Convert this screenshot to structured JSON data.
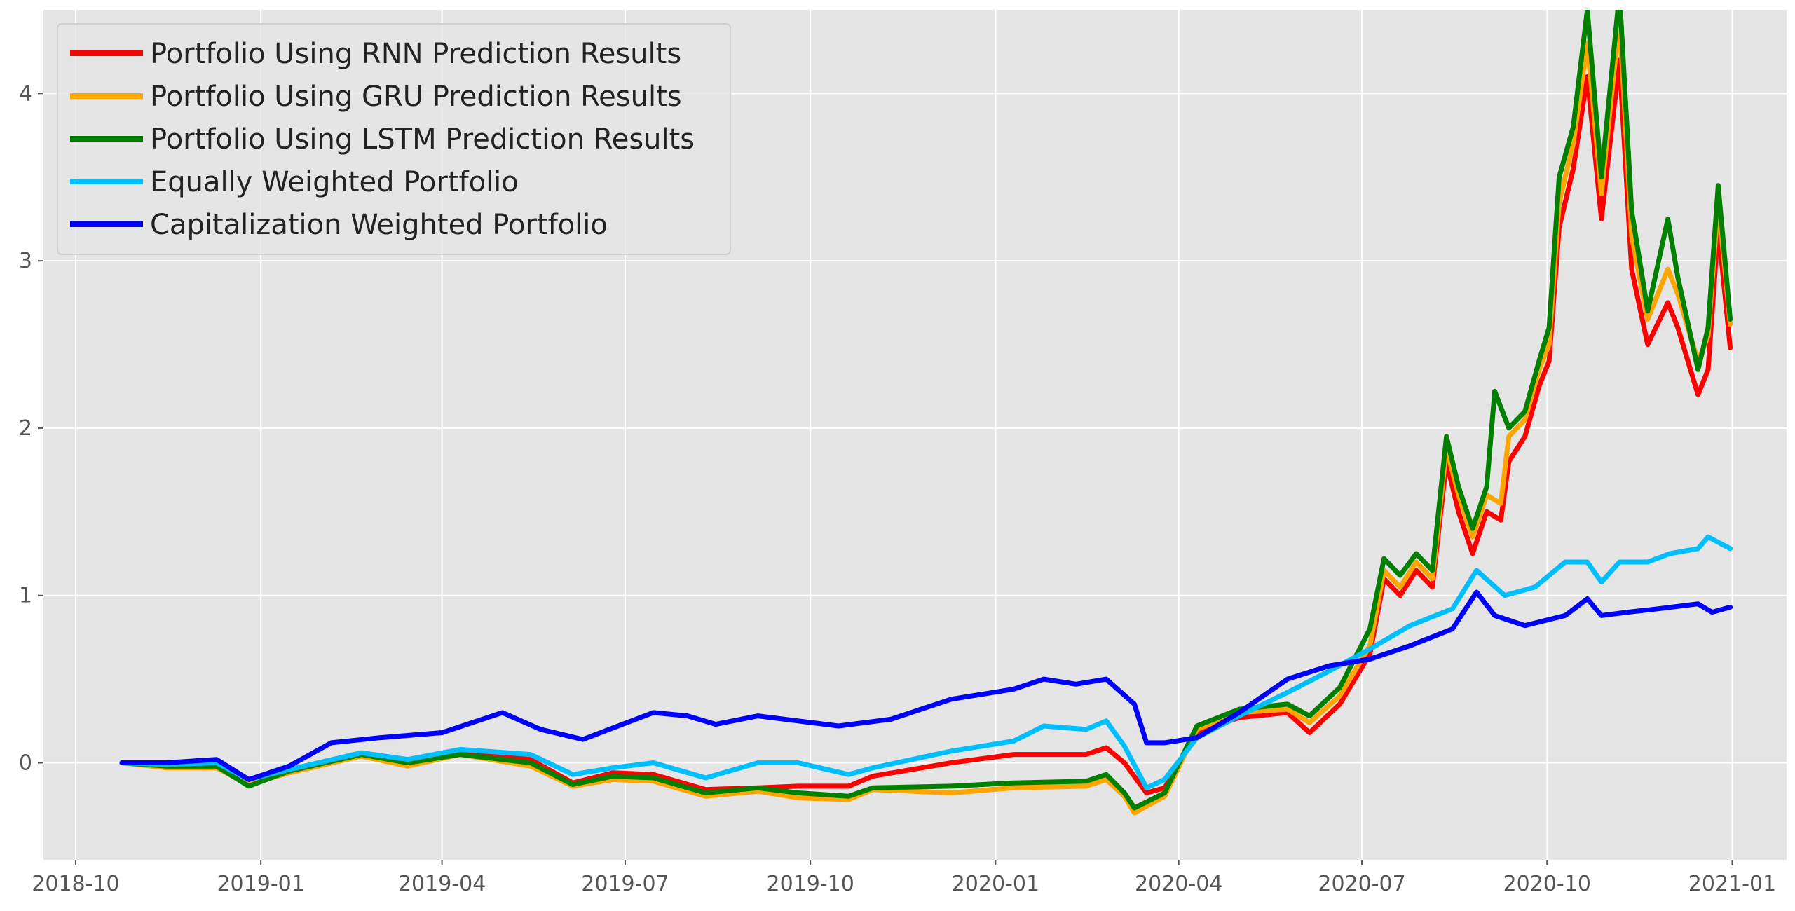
{
  "chart_data": {
    "type": "line",
    "title": "",
    "xlabel": "",
    "ylabel": "",
    "x_axis": {
      "type": "date",
      "range": [
        "2018-09-15",
        "2021-01-28"
      ],
      "ticks": [
        "2018-10-01",
        "2019-01-01",
        "2019-04-01",
        "2019-07-01",
        "2019-10-01",
        "2020-01-01",
        "2020-04-01",
        "2020-07-01",
        "2020-10-01",
        "2021-01-01"
      ],
      "tick_labels": [
        "2018-10",
        "2019-01",
        "2019-04",
        "2019-07",
        "2019-10",
        "2020-01",
        "2020-04",
        "2020-07",
        "2020-10",
        "2021-01"
      ]
    },
    "y_axis": {
      "range": [
        -0.58,
        4.5
      ],
      "ticks": [
        0,
        1,
        2,
        3,
        4
      ],
      "tick_labels": [
        "0",
        "1",
        "2",
        "3",
        "4"
      ]
    },
    "grid": true,
    "legend_position": "top-left",
    "background": "#e5e5e5",
    "series": [
      {
        "name": "Portfolio Using RNN Prediction Results",
        "color": "#ff0000",
        "points": [
          [
            "2018-10-24",
            0.0
          ],
          [
            "2018-11-15",
            -0.02
          ],
          [
            "2018-12-10",
            -0.02
          ],
          [
            "2018-12-26",
            -0.12
          ],
          [
            "2019-01-15",
            -0.05
          ],
          [
            "2019-02-20",
            0.05
          ],
          [
            "2019-03-15",
            0.01
          ],
          [
            "2019-04-10",
            0.06
          ],
          [
            "2019-05-15",
            0.02
          ],
          [
            "2019-06-05",
            -0.12
          ],
          [
            "2019-06-25",
            -0.06
          ],
          [
            "2019-07-15",
            -0.07
          ],
          [
            "2019-08-10",
            -0.16
          ],
          [
            "2019-09-05",
            -0.15
          ],
          [
            "2019-09-25",
            -0.14
          ],
          [
            "2019-10-20",
            -0.14
          ],
          [
            "2019-11-01",
            -0.08
          ],
          [
            "2019-12-10",
            0.0
          ],
          [
            "2020-01-10",
            0.05
          ],
          [
            "2020-02-15",
            0.05
          ],
          [
            "2020-02-25",
            0.09
          ],
          [
            "2020-03-05",
            0.0
          ],
          [
            "2020-03-16",
            -0.18
          ],
          [
            "2020-03-25",
            -0.15
          ],
          [
            "2020-04-10",
            0.18
          ],
          [
            "2020-05-01",
            0.27
          ],
          [
            "2020-05-25",
            0.3
          ],
          [
            "2020-06-05",
            0.18
          ],
          [
            "2020-06-20",
            0.35
          ],
          [
            "2020-07-05",
            0.65
          ],
          [
            "2020-07-12",
            1.1
          ],
          [
            "2020-07-20",
            1.0
          ],
          [
            "2020-07-28",
            1.15
          ],
          [
            "2020-08-05",
            1.05
          ],
          [
            "2020-08-12",
            1.8
          ],
          [
            "2020-08-18",
            1.5
          ],
          [
            "2020-08-25",
            1.25
          ],
          [
            "2020-09-01",
            1.5
          ],
          [
            "2020-09-08",
            1.45
          ],
          [
            "2020-09-12",
            1.8
          ],
          [
            "2020-09-20",
            1.95
          ],
          [
            "2020-09-27",
            2.25
          ],
          [
            "2020-10-02",
            2.4
          ],
          [
            "2020-10-07",
            3.2
          ],
          [
            "2020-10-14",
            3.55
          ],
          [
            "2020-10-21",
            4.1
          ],
          [
            "2020-10-28",
            3.25
          ],
          [
            "2020-11-06",
            4.2
          ],
          [
            "2020-11-12",
            2.95
          ],
          [
            "2020-11-20",
            2.5
          ],
          [
            "2020-11-30",
            2.75
          ],
          [
            "2020-12-05",
            2.6
          ],
          [
            "2020-12-15",
            2.2
          ],
          [
            "2020-12-20",
            2.35
          ],
          [
            "2020-12-25",
            3.2
          ],
          [
            "2020-12-31",
            2.48
          ]
        ]
      },
      {
        "name": "Portfolio Using GRU Prediction Results",
        "color": "#ffa500",
        "points": [
          [
            "2018-10-24",
            0.0
          ],
          [
            "2018-11-15",
            -0.03
          ],
          [
            "2018-12-10",
            -0.03
          ],
          [
            "2018-12-26",
            -0.13
          ],
          [
            "2019-01-15",
            -0.06
          ],
          [
            "2019-02-20",
            0.04
          ],
          [
            "2019-03-15",
            -0.02
          ],
          [
            "2019-04-10",
            0.05
          ],
          [
            "2019-05-15",
            -0.02
          ],
          [
            "2019-06-05",
            -0.14
          ],
          [
            "2019-06-25",
            -0.1
          ],
          [
            "2019-07-15",
            -0.11
          ],
          [
            "2019-08-10",
            -0.2
          ],
          [
            "2019-09-05",
            -0.17
          ],
          [
            "2019-09-25",
            -0.21
          ],
          [
            "2019-10-20",
            -0.22
          ],
          [
            "2019-11-01",
            -0.16
          ],
          [
            "2019-12-10",
            -0.18
          ],
          [
            "2020-01-10",
            -0.15
          ],
          [
            "2020-02-15",
            -0.14
          ],
          [
            "2020-02-25",
            -0.1
          ],
          [
            "2020-03-05",
            -0.2
          ],
          [
            "2020-03-10",
            -0.3
          ],
          [
            "2020-03-25",
            -0.2
          ],
          [
            "2020-04-10",
            0.2
          ],
          [
            "2020-05-01",
            0.3
          ],
          [
            "2020-05-25",
            0.32
          ],
          [
            "2020-06-05",
            0.24
          ],
          [
            "2020-06-20",
            0.4
          ],
          [
            "2020-07-05",
            0.7
          ],
          [
            "2020-07-12",
            1.15
          ],
          [
            "2020-07-20",
            1.05
          ],
          [
            "2020-07-28",
            1.2
          ],
          [
            "2020-08-05",
            1.1
          ],
          [
            "2020-08-12",
            1.88
          ],
          [
            "2020-08-18",
            1.6
          ],
          [
            "2020-08-25",
            1.35
          ],
          [
            "2020-09-01",
            1.6
          ],
          [
            "2020-09-08",
            1.55
          ],
          [
            "2020-09-12",
            1.95
          ],
          [
            "2020-09-20",
            2.05
          ],
          [
            "2020-09-27",
            2.35
          ],
          [
            "2020-10-02",
            2.5
          ],
          [
            "2020-10-07",
            3.35
          ],
          [
            "2020-10-14",
            3.7
          ],
          [
            "2020-10-21",
            4.3
          ],
          [
            "2020-10-28",
            3.4
          ],
          [
            "2020-11-06",
            4.45
          ],
          [
            "2020-11-12",
            3.15
          ],
          [
            "2020-11-20",
            2.65
          ],
          [
            "2020-11-30",
            2.95
          ],
          [
            "2020-12-05",
            2.8
          ],
          [
            "2020-12-15",
            2.4
          ],
          [
            "2020-12-20",
            2.55
          ],
          [
            "2020-12-25",
            3.35
          ],
          [
            "2020-12-31",
            2.62
          ]
        ]
      },
      {
        "name": "Portfolio Using LSTM Prediction Results",
        "color": "#008000",
        "points": [
          [
            "2018-10-24",
            0.0
          ],
          [
            "2018-11-15",
            -0.02
          ],
          [
            "2018-12-10",
            -0.02
          ],
          [
            "2018-12-26",
            -0.14
          ],
          [
            "2019-01-15",
            -0.05
          ],
          [
            "2019-02-20",
            0.05
          ],
          [
            "2019-03-15",
            0.0
          ],
          [
            "2019-04-10",
            0.05
          ],
          [
            "2019-05-15",
            0.0
          ],
          [
            "2019-06-05",
            -0.13
          ],
          [
            "2019-06-25",
            -0.08
          ],
          [
            "2019-07-15",
            -0.09
          ],
          [
            "2019-08-10",
            -0.18
          ],
          [
            "2019-09-05",
            -0.15
          ],
          [
            "2019-09-25",
            -0.18
          ],
          [
            "2019-10-20",
            -0.2
          ],
          [
            "2019-11-01",
            -0.15
          ],
          [
            "2019-12-10",
            -0.14
          ],
          [
            "2020-01-10",
            -0.12
          ],
          [
            "2020-02-15",
            -0.11
          ],
          [
            "2020-02-25",
            -0.07
          ],
          [
            "2020-03-05",
            -0.18
          ],
          [
            "2020-03-10",
            -0.27
          ],
          [
            "2020-03-25",
            -0.18
          ],
          [
            "2020-04-10",
            0.22
          ],
          [
            "2020-05-01",
            0.32
          ],
          [
            "2020-05-25",
            0.35
          ],
          [
            "2020-06-05",
            0.28
          ],
          [
            "2020-06-20",
            0.45
          ],
          [
            "2020-07-05",
            0.8
          ],
          [
            "2020-07-12",
            1.22
          ],
          [
            "2020-07-20",
            1.12
          ],
          [
            "2020-07-28",
            1.25
          ],
          [
            "2020-08-05",
            1.15
          ],
          [
            "2020-08-12",
            1.95
          ],
          [
            "2020-08-18",
            1.65
          ],
          [
            "2020-08-25",
            1.4
          ],
          [
            "2020-09-01",
            1.65
          ],
          [
            "2020-09-05",
            2.22
          ],
          [
            "2020-09-12",
            2.0
          ],
          [
            "2020-09-20",
            2.1
          ],
          [
            "2020-09-27",
            2.4
          ],
          [
            "2020-10-02",
            2.6
          ],
          [
            "2020-10-07",
            3.5
          ],
          [
            "2020-10-14",
            3.8
          ],
          [
            "2020-10-21",
            4.5
          ],
          [
            "2020-10-28",
            3.5
          ],
          [
            "2020-11-06",
            4.6
          ],
          [
            "2020-11-12",
            3.3
          ],
          [
            "2020-11-20",
            2.7
          ],
          [
            "2020-11-30",
            3.25
          ],
          [
            "2020-12-05",
            2.9
          ],
          [
            "2020-12-15",
            2.35
          ],
          [
            "2020-12-20",
            2.6
          ],
          [
            "2020-12-25",
            3.45
          ],
          [
            "2020-12-31",
            2.65
          ]
        ]
      },
      {
        "name": "Equally Weighted Portfolio",
        "color": "#00bfff",
        "points": [
          [
            "2018-10-24",
            0.0
          ],
          [
            "2018-11-15",
            -0.01
          ],
          [
            "2018-12-10",
            0.0
          ],
          [
            "2018-12-26",
            -0.1
          ],
          [
            "2019-01-15",
            -0.04
          ],
          [
            "2019-02-20",
            0.06
          ],
          [
            "2019-03-15",
            0.02
          ],
          [
            "2019-04-10",
            0.08
          ],
          [
            "2019-05-15",
            0.05
          ],
          [
            "2019-06-05",
            -0.07
          ],
          [
            "2019-06-25",
            -0.03
          ],
          [
            "2019-07-15",
            0.0
          ],
          [
            "2019-08-10",
            -0.09
          ],
          [
            "2019-09-05",
            0.0
          ],
          [
            "2019-09-25",
            0.0
          ],
          [
            "2019-10-20",
            -0.07
          ],
          [
            "2019-11-01",
            -0.03
          ],
          [
            "2019-12-10",
            0.07
          ],
          [
            "2020-01-10",
            0.13
          ],
          [
            "2020-01-25",
            0.22
          ],
          [
            "2020-02-15",
            0.2
          ],
          [
            "2020-02-25",
            0.25
          ],
          [
            "2020-03-05",
            0.1
          ],
          [
            "2020-03-16",
            -0.15
          ],
          [
            "2020-03-25",
            -0.1
          ],
          [
            "2020-04-10",
            0.15
          ],
          [
            "2020-05-01",
            0.28
          ],
          [
            "2020-05-25",
            0.42
          ],
          [
            "2020-06-15",
            0.55
          ],
          [
            "2020-07-05",
            0.68
          ],
          [
            "2020-07-25",
            0.82
          ],
          [
            "2020-08-15",
            0.92
          ],
          [
            "2020-08-27",
            1.15
          ],
          [
            "2020-09-10",
            1.0
          ],
          [
            "2020-09-25",
            1.05
          ],
          [
            "2020-10-10",
            1.2
          ],
          [
            "2020-10-21",
            1.2
          ],
          [
            "2020-10-28",
            1.08
          ],
          [
            "2020-11-06",
            1.2
          ],
          [
            "2020-11-20",
            1.2
          ],
          [
            "2020-12-01",
            1.25
          ],
          [
            "2020-12-15",
            1.28
          ],
          [
            "2020-12-20",
            1.35
          ],
          [
            "2020-12-31",
            1.28
          ]
        ]
      },
      {
        "name": "Capitalization Weighted Portfolio",
        "color": "#0000ff",
        "points": [
          [
            "2018-10-24",
            0.0
          ],
          [
            "2018-11-15",
            0.0
          ],
          [
            "2018-12-10",
            0.02
          ],
          [
            "2018-12-26",
            -0.1
          ],
          [
            "2019-01-15",
            -0.02
          ],
          [
            "2019-02-05",
            0.12
          ],
          [
            "2019-03-01",
            0.15
          ],
          [
            "2019-04-01",
            0.18
          ],
          [
            "2019-05-01",
            0.3
          ],
          [
            "2019-05-20",
            0.2
          ],
          [
            "2019-06-10",
            0.14
          ],
          [
            "2019-07-15",
            0.3
          ],
          [
            "2019-08-01",
            0.28
          ],
          [
            "2019-08-15",
            0.23
          ],
          [
            "2019-09-05",
            0.28
          ],
          [
            "2019-09-25",
            0.25
          ],
          [
            "2019-10-15",
            0.22
          ],
          [
            "2019-11-10",
            0.26
          ],
          [
            "2019-12-10",
            0.38
          ],
          [
            "2020-01-10",
            0.44
          ],
          [
            "2020-01-25",
            0.5
          ],
          [
            "2020-02-10",
            0.47
          ],
          [
            "2020-02-25",
            0.5
          ],
          [
            "2020-03-10",
            0.35
          ],
          [
            "2020-03-16",
            0.12
          ],
          [
            "2020-03-25",
            0.12
          ],
          [
            "2020-04-10",
            0.15
          ],
          [
            "2020-05-01",
            0.3
          ],
          [
            "2020-05-25",
            0.5
          ],
          [
            "2020-06-15",
            0.58
          ],
          [
            "2020-07-05",
            0.62
          ],
          [
            "2020-07-25",
            0.7
          ],
          [
            "2020-08-15",
            0.8
          ],
          [
            "2020-08-27",
            1.02
          ],
          [
            "2020-09-05",
            0.88
          ],
          [
            "2020-09-20",
            0.82
          ],
          [
            "2020-10-10",
            0.88
          ],
          [
            "2020-10-21",
            0.98
          ],
          [
            "2020-10-28",
            0.88
          ],
          [
            "2020-11-10",
            0.9
          ],
          [
            "2020-11-25",
            0.92
          ],
          [
            "2020-12-15",
            0.95
          ],
          [
            "2020-12-22",
            0.9
          ],
          [
            "2020-12-31",
            0.93
          ]
        ]
      }
    ]
  }
}
